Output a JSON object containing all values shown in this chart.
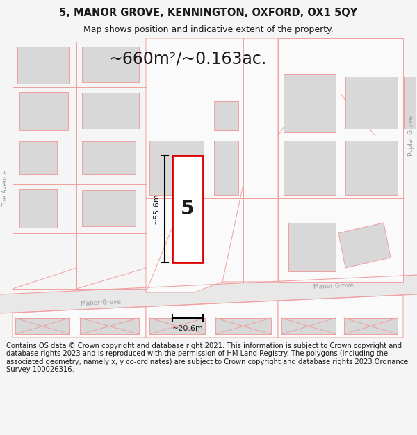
{
  "title": "5, MANOR GROVE, KENNINGTON, OXFORD, OX1 5QY",
  "subtitle": "Map shows position and indicative extent of the property.",
  "area_text": "~660m²/~0.163ac.",
  "dim_width": "~20.6m",
  "dim_height": "~55.6m",
  "property_number": "5",
  "street_label_left": "Manor Grove",
  "street_label_right": "Manor Grove",
  "side_street_left": "The Avenue",
  "side_street_right": "Poplar Grove",
  "footer": "Contains OS data © Crown copyright and database right 2021. This information is subject to Crown copyright and database rights 2023 and is reproduced with the permission of HM Land Registry. The polygons (including the associated geometry, namely x, y co-ordinates) are subject to Crown copyright and database rights 2023 Ordnance Survey 100026316.",
  "bg_color": "#f5f5f5",
  "map_bg": "#ffffff",
  "building_fill": "#d8d8d8",
  "building_stroke": "#f0a0a0",
  "road_stroke": "#f0a0a0",
  "road_fill": "#ebebeb",
  "highlight_color": "#dd0000",
  "dim_color": "#1a1a1a",
  "text_color": "#1a1a1a",
  "road_label_color": "#999999",
  "footer_color": "#1a1a1a",
  "title_fontsize": 10.5,
  "subtitle_fontsize": 9.0,
  "area_fontsize": 17,
  "number_fontsize": 20,
  "dim_fontsize": 8,
  "road_fontsize": 6.5,
  "footer_fontsize": 7.2
}
